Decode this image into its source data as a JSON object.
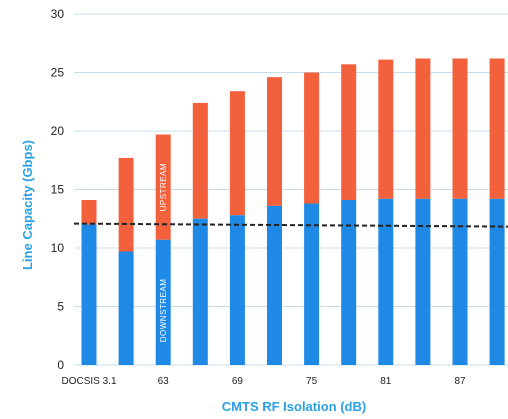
{
  "chart_data": {
    "type": "bar",
    "stacked": true,
    "categories": [
      "DOCSIS 3.1",
      "",
      "63",
      "",
      "69",
      "",
      "75",
      "",
      "81",
      "",
      "87",
      ""
    ],
    "series": [
      {
        "key": "downstream",
        "values": [
          12.0,
          9.7,
          10.7,
          12.5,
          12.8,
          13.6,
          13.8,
          14.1,
          14.2,
          14.2,
          14.2,
          14.2
        ]
      },
      {
        "key": "upstream",
        "values": [
          2.1,
          8.0,
          9.0,
          9.9,
          10.6,
          11.0,
          11.2,
          11.6,
          11.9,
          12.0,
          12.0,
          12.0
        ]
      }
    ],
    "bar_labels": {
      "downstream": "DOWNSTREAM",
      "upstream": "UPSTREAM"
    },
    "reference_line": {
      "y": 12.0,
      "style": "dashed"
    },
    "xlabel": "CMTS RF Isolation (dB)",
    "ylabel": "Line Capacity (Gbps)",
    "ylim": [
      0,
      30
    ],
    "yticks": [
      0,
      5,
      10,
      15,
      20,
      25,
      30
    ],
    "grid": true,
    "colors": {
      "downstream": "#1f8ae6",
      "upstream": "#f2603c",
      "axis_title": "#2aa0e6",
      "grid": "#c9dcec"
    }
  }
}
